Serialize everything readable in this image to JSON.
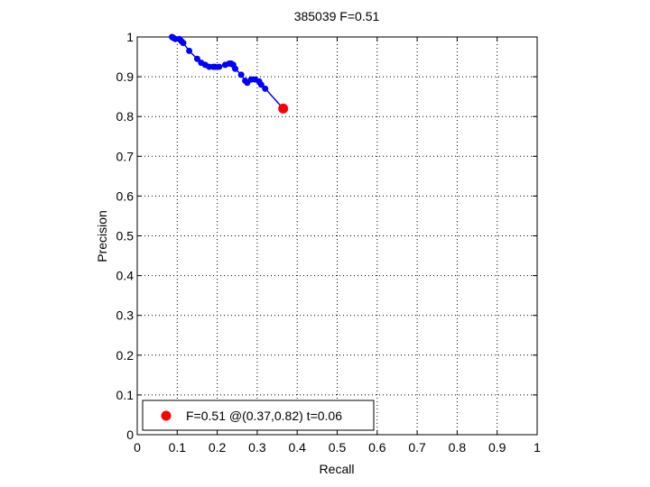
{
  "chart_data": {
    "type": "line",
    "title": "385039 F=0.51",
    "xlabel": "Recall",
    "ylabel": "Precision",
    "xlim": [
      0,
      1
    ],
    "ylim": [
      0,
      1
    ],
    "grid": true,
    "xticks": [
      "0",
      "0.1",
      "0.2",
      "0.3",
      "0.4",
      "0.5",
      "0.6",
      "0.7",
      "0.8",
      "0.9",
      "1"
    ],
    "yticks": [
      "0",
      "0.1",
      "0.2",
      "0.3",
      "0.4",
      "0.5",
      "0.6",
      "0.7",
      "0.8",
      "0.9",
      "1"
    ],
    "series": [
      {
        "color": "#0000ff",
        "x": [
          0.087,
          0.09,
          0.095,
          0.105,
          0.11,
          0.115,
          0.13,
          0.15,
          0.16,
          0.17,
          0.18,
          0.19,
          0.195,
          0.205,
          0.22,
          0.23,
          0.235,
          0.24,
          0.245,
          0.26,
          0.27,
          0.275,
          0.285,
          0.295,
          0.305,
          0.31,
          0.32,
          0.365
        ],
        "y": [
          1.0,
          0.998,
          0.995,
          0.995,
          0.99,
          0.985,
          0.965,
          0.945,
          0.935,
          0.93,
          0.925,
          0.925,
          0.925,
          0.925,
          0.93,
          0.933,
          0.933,
          0.93,
          0.92,
          0.905,
          0.89,
          0.885,
          0.893,
          0.893,
          0.888,
          0.88,
          0.87,
          0.82
        ]
      }
    ],
    "highlight": {
      "x": 0.365,
      "y": 0.82,
      "color": "#ff0000"
    },
    "legend": {
      "position": "bottom-left",
      "entries": [
        {
          "label": "F=0.51 @(0.37,0.82) t=0.06",
          "color": "#ff0000"
        }
      ]
    }
  }
}
